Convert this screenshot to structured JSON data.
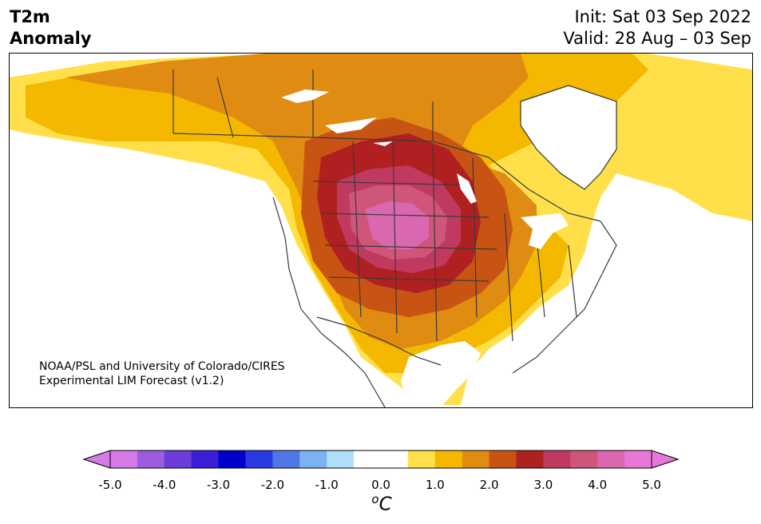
{
  "title": {
    "line1": "T2m",
    "line2": "Anomaly"
  },
  "info": {
    "init": "Init: Sat 03 Sep 2022",
    "valid": "Valid: 28 Aug – 03 Sep"
  },
  "credit": {
    "line1": "NOAA/PSL and University of Colorado/CIRES",
    "line2": "Experimental LIM Forecast (v1.2)"
  },
  "colorbar": {
    "unit_symbol": "o",
    "unit_letter": "C",
    "ticks": [
      "-5.0",
      "-4.0",
      "-3.0",
      "-2.0",
      "-1.0",
      "0.0",
      "1.0",
      "2.0",
      "3.0",
      "4.0",
      "5.0"
    ],
    "colors": [
      "#d67ae8",
      "#9c5ce0",
      "#6b3ddb",
      "#3b1fd6",
      "#0000cc",
      "#2a3ae0",
      "#4f78e6",
      "#7bb3f2",
      "#b0ddfa",
      "#ffffff",
      "#ffffff",
      "#ffe04a",
      "#f4b800",
      "#e08b12",
      "#c85414",
      "#b02020",
      "#c03a60",
      "#d0557a",
      "#d968b0",
      "#e878d8"
    ],
    "under_color": "#d67ae8",
    "over_color": "#e878d8"
  },
  "map": {
    "region": "North America",
    "anomaly_colors": {
      "p0_5": "#ffe04a",
      "p1_0": "#f4b800",
      "p1_5": "#e08b12",
      "p2_0": "#c85414",
      "p2_5": "#b02020",
      "p3_0": "#c03a60",
      "p3_5": "#d0557a",
      "p4_0": "#d968b0"
    }
  }
}
